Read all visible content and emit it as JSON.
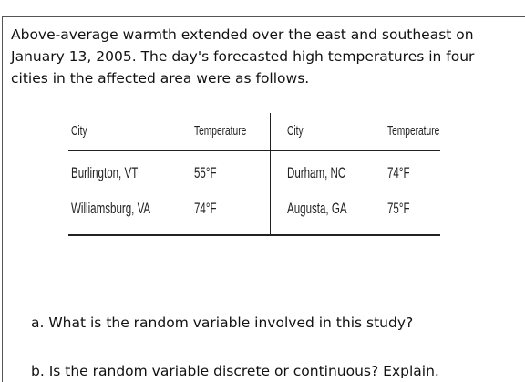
{
  "paragraph": {
    "lines": [
      "Above-average warmth extended over the east and southeast on",
      "January 13, 2005. The day's forecasted high temperatures in four",
      "cities in the affected area were as follows."
    ]
  },
  "table": {
    "header": [
      "City",
      "Temperature",
      "City",
      "Temperature"
    ],
    "rows": [
      [
        "Burlington, VT",
        "55°F",
        "Durham, NC",
        "74°F"
      ],
      [
        "Williamsburg, VA",
        "74°F",
        "Augusta, GA",
        "75°F"
      ]
    ]
  },
  "questions": [
    "a. What is the random variable involved in this study?",
    "b. Is the random variable discrete or continuous? Explain."
  ]
}
